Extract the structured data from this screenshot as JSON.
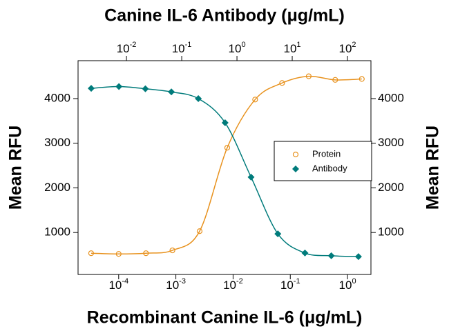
{
  "chart_data": {
    "type": "scatter",
    "title": "Canine IL-6 Antibody (μg/mL)",
    "x_label": "Recombinant Canine IL-6 (μg/mL)",
    "y_label": "Mean RFU",
    "y2_label": "Mean RFU",
    "xscale": "log",
    "x2scale": "log",
    "xlim": [
      1.95e-05,
      2.57
    ],
    "x2lim": [
      0.00133,
      266
    ],
    "ylim": [
      60,
      4850
    ],
    "y2lim": [
      60,
      4850
    ],
    "xticks": [
      {
        "value": 0.0001,
        "label": "10",
        "exponent": "-4"
      },
      {
        "value": 0.001,
        "label": "10",
        "exponent": "-3"
      },
      {
        "value": 0.01,
        "label": "10",
        "exponent": "-2"
      },
      {
        "value": 0.1,
        "label": "10",
        "exponent": "-1"
      },
      {
        "value": 1,
        "label": "10",
        "exponent": "0"
      }
    ],
    "x2ticks": [
      {
        "value": 0.01,
        "label": "10",
        "exponent": "-2"
      },
      {
        "value": 0.1,
        "label": "10",
        "exponent": "-1"
      },
      {
        "value": 1,
        "label": "10",
        "exponent": "0"
      },
      {
        "value": 10,
        "label": "10",
        "exponent": "1"
      },
      {
        "value": 100,
        "label": "10",
        "exponent": "2"
      }
    ],
    "yticks": [
      1000,
      2000,
      3000,
      4000
    ],
    "y2ticks": [
      1000,
      2000,
      3000,
      4000
    ],
    "legend": "right",
    "series": [
      {
        "name": "Protein",
        "color": "#e8921e",
        "marker": "circle-open",
        "axis": "x",
        "x": [
          3.3e-05,
          0.0001,
          0.0003,
          0.00087,
          0.0026,
          0.0079,
          0.0243,
          0.072,
          0.21,
          0.61,
          1.78
        ],
        "values": [
          536,
          520,
          536,
          600,
          1030,
          2900,
          3980,
          4350,
          4500,
          4420,
          4440
        ]
      },
      {
        "name": "Antibody",
        "color": "#007b7b",
        "marker": "diamond",
        "axis": "x2",
        "x": [
          0.0023,
          0.0073,
          0.022,
          0.065,
          0.2,
          0.61,
          1.8,
          5.5,
          17,
          51,
          158
        ],
        "values": [
          4230,
          4270,
          4220,
          4150,
          4000,
          3460,
          2240,
          970,
          540,
          480,
          460
        ]
      }
    ]
  }
}
